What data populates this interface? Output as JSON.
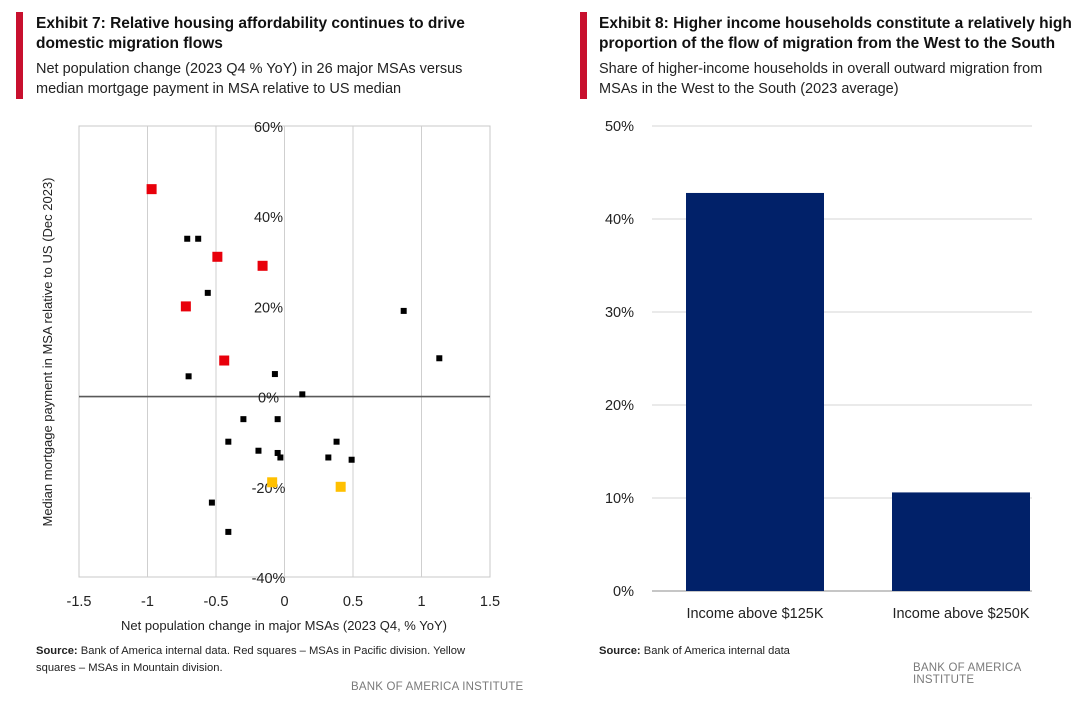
{
  "left": {
    "title_line1": "Exhibit 7: Relative housing affordability continues to drive",
    "title_line2": "domestic migration flows",
    "subtitle_line1": "Net population change (2023 Q4 % YoY) in 26 major MSAs versus",
    "subtitle_line2": "median mortgage payment in MSA relative to US median",
    "source_label": "Source:",
    "source_line1": " Bank of America internal data. Red squares – MSAs in Pacific division. Yellow",
    "source_line2": "squares – MSAs in Mountain division.",
    "brand": "BANK OF AMERICA INSTITUTE"
  },
  "right": {
    "title_line1": "Exhibit 8: Higher income households constitute a relatively high",
    "title_line2": "proportion of the flow of migration from the West to the South",
    "subtitle_line1": "Share of higher-income households in overall outward migration from",
    "subtitle_line2": "MSAs in the West to the South (2023 average)",
    "source_label": "Source:",
    "source_text": " Bank of America internal data",
    "brand": "BANK OF AMERICA INSTITUTE"
  },
  "colors": {
    "accent": "#c8102e",
    "pacific": "#e8000b",
    "mountain": "#ffc000",
    "other": "#000000",
    "bar": "#012169"
  },
  "chart_data": [
    {
      "type": "scatter",
      "title": "Exhibit 7: Relative housing affordability continues to drive domestic migration flows",
      "xlabel": "Net population change in major MSAs (2023 Q4, % YoY)",
      "ylabel": "Median mortgage payment in MSA relative to US (Dec 2023)",
      "xlim": [
        -1.5,
        1.5
      ],
      "ylim": [
        -40,
        60
      ],
      "x_ticks": [
        -1.5,
        -1,
        -0.5,
        0,
        0.5,
        1,
        1.5
      ],
      "x_tick_labels": [
        "-1.5",
        "-1",
        "-0.5",
        "0",
        "0.5",
        "1",
        "1.5"
      ],
      "y_ticks": [
        -40,
        -20,
        0,
        20,
        40,
        60
      ],
      "y_tick_labels": [
        "-40%",
        "-20%",
        "0%",
        "20%",
        "40%",
        "60%"
      ],
      "grid": "vertical",
      "series": [
        {
          "name": "Pacific division",
          "color": "#e8000b",
          "points": [
            [
              -0.97,
              46
            ],
            [
              -0.49,
              31
            ],
            [
              -0.16,
              29
            ],
            [
              -0.72,
              20
            ],
            [
              -0.44,
              8
            ]
          ]
        },
        {
          "name": "Mountain division",
          "color": "#ffc000",
          "points": [
            [
              -0.09,
              -19
            ],
            [
              0.41,
              -20
            ]
          ]
        },
        {
          "name": "Other MSAs",
          "color": "#000000",
          "points": [
            [
              -0.71,
              35
            ],
            [
              -0.63,
              35
            ],
            [
              -0.56,
              23
            ],
            [
              0.87,
              19
            ],
            [
              1.13,
              8.5
            ],
            [
              -0.7,
              4.5
            ],
            [
              -0.07,
              5
            ],
            [
              0.13,
              0.5
            ],
            [
              -0.3,
              -5
            ],
            [
              -0.05,
              -5
            ],
            [
              -0.41,
              -10
            ],
            [
              0.38,
              -10
            ],
            [
              -0.19,
              -12
            ],
            [
              -0.05,
              -12.5
            ],
            [
              -0.03,
              -13.5
            ],
            [
              0.32,
              -13.5
            ],
            [
              0.49,
              -14
            ],
            [
              -0.53,
              -23.5
            ],
            [
              -0.41,
              -30
            ]
          ]
        }
      ]
    },
    {
      "type": "bar",
      "title": "Exhibit 8: Higher income households constitute a relatively high proportion of the flow of migration from the West to the South",
      "categories": [
        "Income above $125K",
        "Income above $250K"
      ],
      "values": [
        42.8,
        10.6
      ],
      "ylim": [
        0,
        50
      ],
      "y_ticks": [
        0,
        10,
        20,
        30,
        40,
        50
      ],
      "y_tick_labels": [
        "0%",
        "10%",
        "20%",
        "30%",
        "40%",
        "50%"
      ],
      "grid": "horizontal"
    }
  ]
}
